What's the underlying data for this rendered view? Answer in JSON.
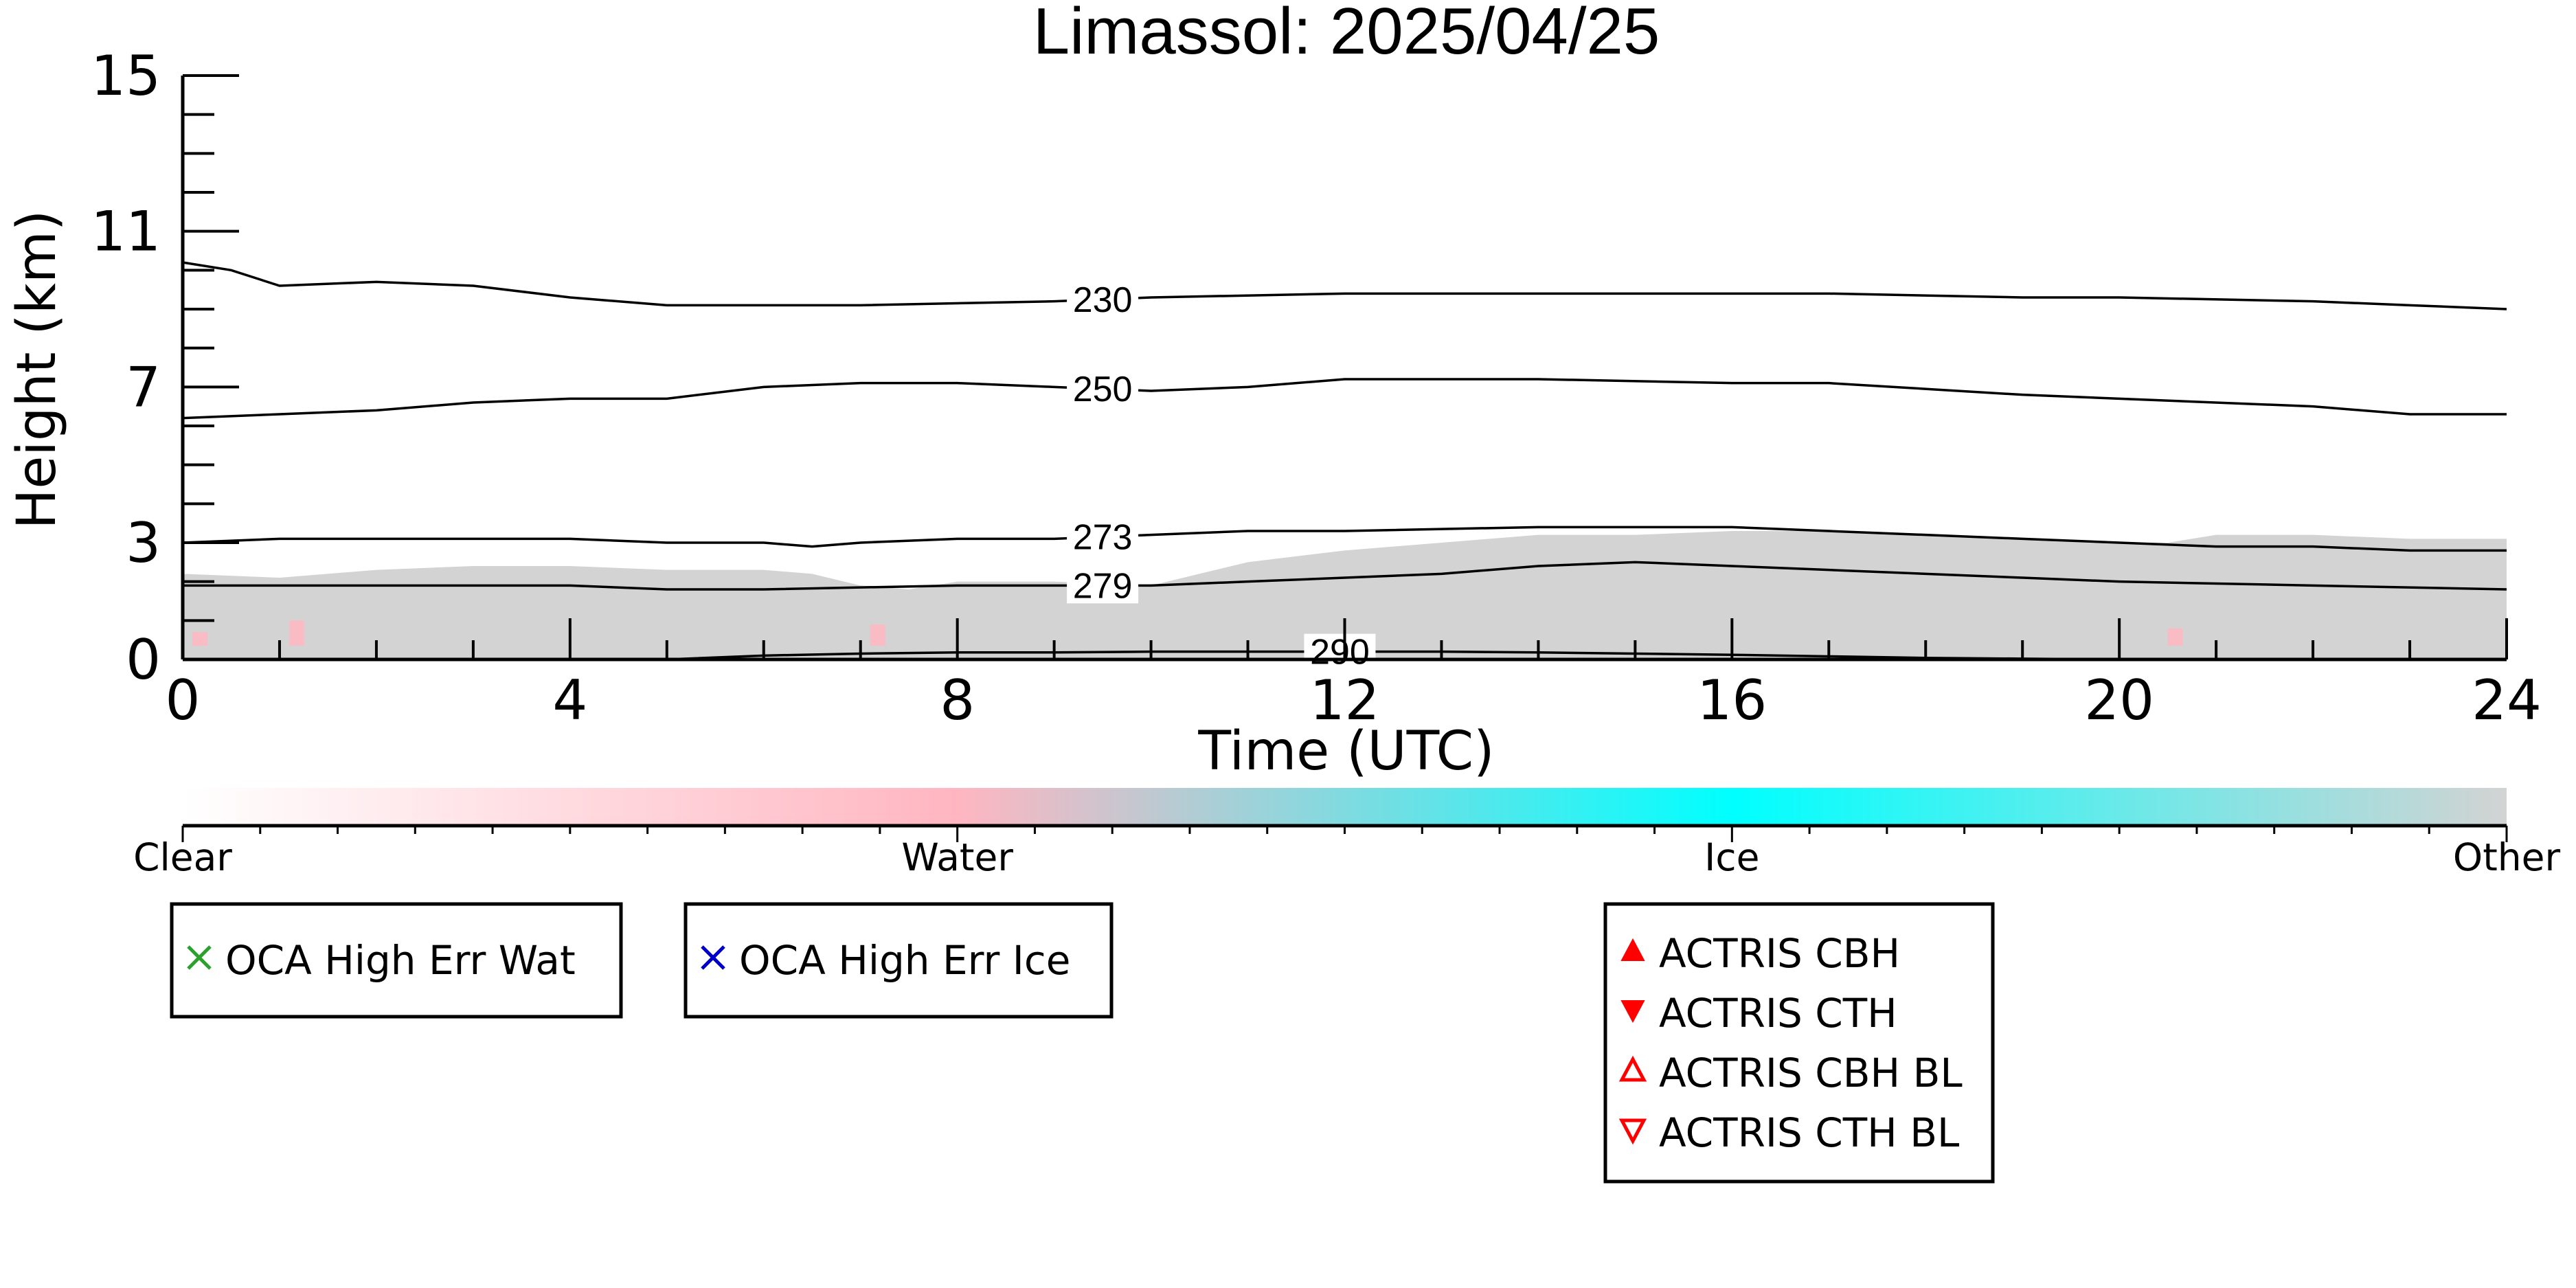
{
  "chart_data": {
    "type": "heatmap",
    "title": "Limassol: 2025/04/25",
    "xlabel": "Time (UTC)",
    "ylabel": "Height (km)",
    "xlim": [
      0,
      24
    ],
    "ylim": [
      0,
      15
    ],
    "x_ticks": [
      0,
      4,
      8,
      12,
      16,
      20,
      24
    ],
    "y_ticks": [
      0,
      3,
      7,
      11,
      15
    ],
    "contours": [
      {
        "label": "230",
        "label_x": 9.5,
        "points": [
          [
            0,
            10.2
          ],
          [
            0.5,
            10.0
          ],
          [
            1,
            9.6
          ],
          [
            2,
            9.7
          ],
          [
            3,
            9.6
          ],
          [
            4,
            9.3
          ],
          [
            5,
            9.1
          ],
          [
            7,
            9.1
          ],
          [
            9,
            9.2
          ],
          [
            10,
            9.3
          ],
          [
            12,
            9.4
          ],
          [
            14,
            9.4
          ],
          [
            16,
            9.4
          ],
          [
            17,
            9.4
          ],
          [
            19,
            9.3
          ],
          [
            20,
            9.3
          ],
          [
            22,
            9.2
          ],
          [
            23,
            9.1
          ],
          [
            24,
            9.0
          ]
        ]
      },
      {
        "label": "250",
        "label_x": 9.5,
        "points": [
          [
            0,
            6.2
          ],
          [
            1,
            6.3
          ],
          [
            2,
            6.4
          ],
          [
            3,
            6.6
          ],
          [
            4,
            6.7
          ],
          [
            5,
            6.7
          ],
          [
            6,
            7.0
          ],
          [
            7,
            7.1
          ],
          [
            8,
            7.1
          ],
          [
            9,
            7.0
          ],
          [
            10,
            6.9
          ],
          [
            11,
            7.0
          ],
          [
            12,
            7.2
          ],
          [
            13,
            7.2
          ],
          [
            14,
            7.2
          ],
          [
            16,
            7.1
          ],
          [
            17,
            7.1
          ],
          [
            19,
            6.8
          ],
          [
            20,
            6.7
          ],
          [
            22,
            6.5
          ],
          [
            23,
            6.3
          ],
          [
            24,
            6.3
          ]
        ]
      },
      {
        "label": "273",
        "label_x": 9.5,
        "points": [
          [
            0,
            3.0
          ],
          [
            1,
            3.1
          ],
          [
            3,
            3.1
          ],
          [
            4,
            3.1
          ],
          [
            5,
            3.0
          ],
          [
            6,
            3.0
          ],
          [
            6.5,
            2.9
          ],
          [
            7,
            3.0
          ],
          [
            8,
            3.1
          ],
          [
            9,
            3.1
          ],
          [
            10,
            3.2
          ],
          [
            11,
            3.3
          ],
          [
            12,
            3.3
          ],
          [
            14,
            3.4
          ],
          [
            16,
            3.4
          ],
          [
            17,
            3.3
          ],
          [
            18,
            3.2
          ],
          [
            19,
            3.1
          ],
          [
            20,
            3.0
          ],
          [
            21,
            2.9
          ],
          [
            22,
            2.9
          ],
          [
            23,
            2.8
          ],
          [
            24,
            2.8
          ]
        ]
      },
      {
        "label": "279",
        "label_x": 9.5,
        "points": [
          [
            0,
            1.9
          ],
          [
            1,
            1.9
          ],
          [
            3,
            1.9
          ],
          [
            4,
            1.9
          ],
          [
            5,
            1.8
          ],
          [
            6,
            1.8
          ],
          [
            8,
            1.9
          ],
          [
            9,
            1.9
          ],
          [
            10,
            1.9
          ],
          [
            11,
            2.0
          ],
          [
            12,
            2.1
          ],
          [
            13,
            2.2
          ],
          [
            14,
            2.4
          ],
          [
            15,
            2.5
          ],
          [
            16,
            2.4
          ],
          [
            17,
            2.3
          ],
          [
            18,
            2.2
          ],
          [
            19,
            2.1
          ],
          [
            20,
            2.0
          ],
          [
            22,
            1.9
          ],
          [
            24,
            1.8
          ]
        ]
      },
      {
        "label": "290",
        "label_x": 11.95,
        "points": [
          [
            5,
            0.0
          ],
          [
            6,
            0.1
          ],
          [
            7,
            0.15
          ],
          [
            8,
            0.18
          ],
          [
            9,
            0.18
          ],
          [
            10,
            0.2
          ],
          [
            11,
            0.2
          ],
          [
            12,
            0.2
          ],
          [
            13,
            0.2
          ],
          [
            14,
            0.18
          ],
          [
            15,
            0.15
          ],
          [
            16,
            0.12
          ],
          [
            17,
            0.08
          ],
          [
            18,
            0.04
          ],
          [
            19,
            0.02
          ],
          [
            20,
            0.0
          ]
        ]
      }
    ],
    "classification_field": {
      "color": "#d3d3d3",
      "top_profile": [
        [
          0,
          2.2
        ],
        [
          1,
          2.1
        ],
        [
          2,
          2.3
        ],
        [
          3,
          2.4
        ],
        [
          4,
          2.4
        ],
        [
          5,
          2.3
        ],
        [
          6,
          2.3
        ],
        [
          6.5,
          2.2
        ],
        [
          7,
          1.9
        ],
        [
          7.5,
          1.8
        ],
        [
          8,
          2.0
        ],
        [
          9,
          2.0
        ],
        [
          10,
          1.9
        ],
        [
          11,
          2.5
        ],
        [
          12,
          2.8
        ],
        [
          13,
          3.0
        ],
        [
          14,
          3.2
        ],
        [
          15,
          3.2
        ],
        [
          16,
          3.3
        ],
        [
          17,
          3.3
        ],
        [
          18,
          3.2
        ],
        [
          19,
          3.1
        ],
        [
          20,
          3.0
        ],
        [
          20.5,
          3.0
        ],
        [
          21,
          3.2
        ],
        [
          22,
          3.2
        ],
        [
          23,
          3.1
        ],
        [
          24,
          3.1
        ]
      ],
      "water_patches": [
        [
          0.1,
          0.7
        ],
        [
          1.1,
          1.0
        ],
        [
          7.1,
          0.9
        ],
        [
          20.5,
          0.8
        ]
      ]
    },
    "colorbar": {
      "labels": [
        "Clear",
        "Water",
        "Ice",
        "Other"
      ],
      "colors": [
        "#ffffff",
        "#ffb6c1",
        "#00ffff",
        "#d3d3d3"
      ]
    },
    "legends": [
      {
        "items": [
          {
            "marker": "x",
            "color": "#2ca02c",
            "label": "OCA High Err Wat"
          }
        ]
      },
      {
        "items": [
          {
            "marker": "x",
            "color": "#0000cc",
            "label": "OCA High Err Ice"
          }
        ]
      },
      {
        "items": [
          {
            "marker": "triangle-up",
            "color": "#ff0000",
            "filled": true,
            "label": "ACTRIS CBH"
          },
          {
            "marker": "triangle-down",
            "color": "#ff0000",
            "filled": true,
            "label": "ACTRIS CTH"
          },
          {
            "marker": "triangle-up",
            "color": "#ff0000",
            "filled": false,
            "label": "ACTRIS CBH BL"
          },
          {
            "marker": "triangle-down",
            "color": "#ff0000",
            "filled": false,
            "label": "ACTRIS CTH BL"
          }
        ]
      }
    ]
  }
}
